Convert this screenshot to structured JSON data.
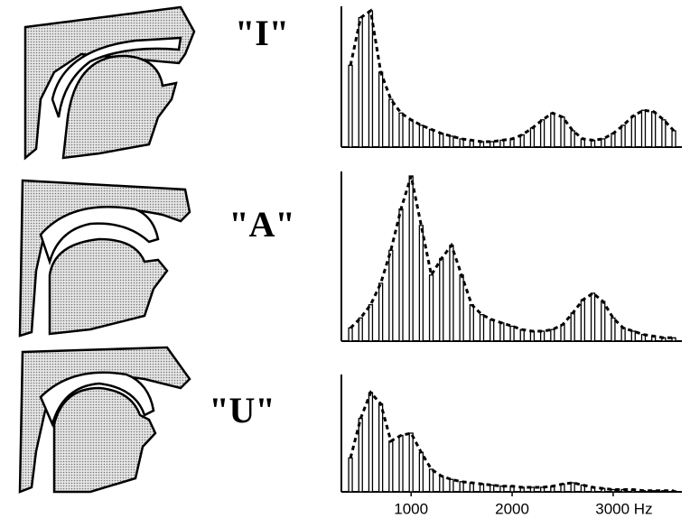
{
  "chart_data": [
    {
      "type": "bar",
      "title": "\"I\"",
      "xlim": [
        310,
        3680
      ],
      "ylim": [
        0,
        100
      ],
      "x": [
        400,
        500,
        600,
        700,
        800,
        900,
        1000,
        1100,
        1200,
        1300,
        1400,
        1500,
        1600,
        1700,
        1800,
        1900,
        2000,
        2100,
        2200,
        2300,
        2400,
        2500,
        2600,
        2700,
        2800,
        2900,
        3000,
        3100,
        3200,
        3300,
        3400,
        3500,
        3600
      ],
      "values": [
        60,
        95,
        100,
        55,
        35,
        25,
        20,
        16,
        13,
        10,
        8,
        6,
        5,
        4,
        4,
        5,
        6,
        9,
        14,
        20,
        25,
        22,
        12,
        6,
        5,
        6,
        10,
        16,
        23,
        27,
        26,
        20,
        12
      ]
    },
    {
      "type": "bar",
      "title": "\"A\"",
      "xlim": [
        310,
        3680
      ],
      "ylim": [
        0,
        100
      ],
      "x": [
        400,
        500,
        600,
        700,
        800,
        900,
        1000,
        1100,
        1200,
        1300,
        1400,
        1500,
        1600,
        1700,
        1800,
        1900,
        2000,
        2100,
        2200,
        2300,
        2400,
        2500,
        2600,
        2700,
        2800,
        2900,
        3000,
        3100,
        3200,
        3300,
        3400,
        3500,
        3600
      ],
      "values": [
        8,
        14,
        22,
        35,
        55,
        80,
        100,
        70,
        40,
        50,
        58,
        40,
        22,
        16,
        13,
        11,
        9,
        7,
        6,
        6,
        7,
        10,
        17,
        25,
        29,
        24,
        14,
        8,
        6,
        4,
        3,
        2,
        2
      ]
    },
    {
      "type": "bar",
      "title": "\"U\"",
      "xlim": [
        310,
        3680
      ],
      "ylim": [
        0,
        100
      ],
      "x": [
        400,
        500,
        600,
        700,
        800,
        900,
        1000,
        1100,
        1200,
        1300,
        1400,
        1500,
        1600,
        1700,
        1800,
        1900,
        2000,
        2100,
        2200,
        2300,
        2400,
        2500,
        2600,
        2700,
        2800,
        2900,
        3000,
        3100,
        3200,
        3300,
        3400,
        3500,
        3600
      ],
      "values": [
        30,
        65,
        88,
        78,
        45,
        50,
        52,
        35,
        20,
        14,
        11,
        9,
        8,
        7,
        6,
        5,
        5,
        4,
        4,
        4,
        5,
        7,
        8,
        6,
        4,
        3,
        2,
        2,
        2,
        1,
        1,
        1,
        1
      ],
      "xticks": [
        1000,
        2000,
        {
          "value": 3000,
          "label": "3000 Hz"
        }
      ]
    }
  ]
}
